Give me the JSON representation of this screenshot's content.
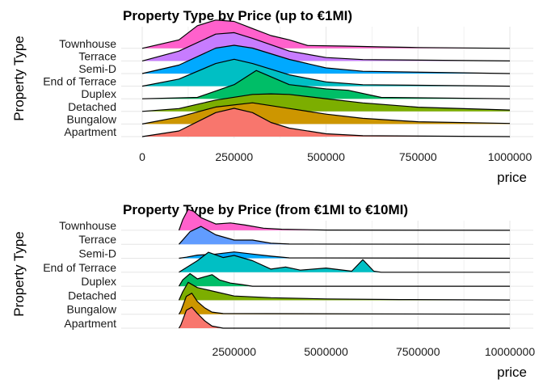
{
  "chart_data": [
    {
      "type": "area",
      "subtype": "ridgeline-density",
      "title": "Property Type by Price (up to €1MI)",
      "xlabel": "price",
      "ylabel": "Property Type",
      "xlim": [
        0,
        1000000
      ],
      "xticks": [
        0,
        250000,
        500000,
        750000,
        1000000
      ],
      "xtick_labels": [
        "0",
        "250000",
        "500000",
        "750000",
        "1000000"
      ],
      "grid": true,
      "legend": "none",
      "categories": [
        "Apartment",
        "Bungalow",
        "Detached",
        "Duplex",
        "End of Terrace",
        "Semi-D",
        "Terrace",
        "Townhouse"
      ],
      "series": [
        {
          "name": "Apartment",
          "color": "#F8766D",
          "x": [
            0,
            100000,
            200000,
            250000,
            300000,
            350000,
            400000,
            500000,
            600000,
            1000000
          ],
          "density": [
            0,
            0.2,
            0.85,
            1.0,
            0.85,
            0.5,
            0.3,
            0.1,
            0.03,
            0
          ]
        },
        {
          "name": "Bungalow",
          "color": "#CD9600",
          "x": [
            0,
            100000,
            200000,
            300000,
            400000,
            500000,
            600000,
            750000,
            1000000
          ],
          "density": [
            0,
            0.25,
            0.6,
            0.75,
            0.55,
            0.35,
            0.2,
            0.08,
            0.02
          ]
        },
        {
          "name": "Detached",
          "color": "#7CAE00",
          "x": [
            0,
            100000,
            200000,
            300000,
            350000,
            400000,
            500000,
            600000,
            750000,
            1000000
          ],
          "density": [
            0,
            0.1,
            0.4,
            0.6,
            0.62,
            0.6,
            0.45,
            0.3,
            0.15,
            0.05
          ]
        },
        {
          "name": "Duplex",
          "color": "#00BE67",
          "x": [
            0,
            150000,
            250000,
            310000,
            400000,
            500000,
            560000,
            650000,
            1000000
          ],
          "density": [
            0,
            0.05,
            0.5,
            1.0,
            0.5,
            0.35,
            0.3,
            0.05,
            0
          ]
        },
        {
          "name": "End of Terrace",
          "color": "#00BFC4",
          "x": [
            0,
            100000,
            200000,
            250000,
            300000,
            400000,
            500000,
            600000,
            1000000
          ],
          "density": [
            0,
            0.25,
            0.8,
            0.95,
            0.8,
            0.4,
            0.15,
            0.05,
            0
          ]
        },
        {
          "name": "Semi-D",
          "color": "#00A9FF",
          "x": [
            0,
            100000,
            200000,
            250000,
            300000,
            400000,
            500000,
            600000,
            1000000
          ],
          "density": [
            0,
            0.3,
            0.9,
            1.0,
            0.9,
            0.5,
            0.2,
            0.08,
            0
          ]
        },
        {
          "name": "Terrace",
          "color": "#C77CFF",
          "x": [
            0,
            100000,
            200000,
            250000,
            300000,
            400000,
            500000,
            600000,
            1000000
          ],
          "density": [
            0,
            0.35,
            0.95,
            1.0,
            0.8,
            0.35,
            0.12,
            0.05,
            0
          ]
        },
        {
          "name": "Townhouse",
          "color": "#FF61CC",
          "x": [
            0,
            100000,
            150000,
            200000,
            250000,
            300000,
            350000,
            400000,
            450000,
            550000,
            650000,
            750000,
            1000000
          ],
          "density": [
            0,
            0.3,
            0.8,
            1.0,
            0.95,
            0.7,
            0.45,
            0.3,
            0.1,
            0.08,
            0.05,
            0.03,
            0
          ]
        }
      ]
    },
    {
      "type": "area",
      "subtype": "ridgeline-density",
      "title": "Property Type by Price (from €1MI to €10MI)",
      "xlabel": "price",
      "ylabel": "Property Type",
      "xlim": [
        0,
        10000000
      ],
      "xticks": [
        2500000,
        5000000,
        7500000,
        10000000
      ],
      "xtick_labels": [
        "2500000",
        "5000000",
        "7500000",
        "10000000"
      ],
      "grid": true,
      "legend": "none",
      "categories": [
        "Apartment",
        "Bungalow",
        "Detached",
        "Duplex",
        "End of Terrace",
        "Semi-D",
        "Terrace",
        "Townhouse"
      ],
      "series": [
        {
          "name": "Apartment",
          "color": "#F8766D",
          "x": [
            1000000,
            1050000,
            1200000,
            1350000,
            1500000,
            1700000,
            1900000,
            2200000,
            10000000
          ],
          "density": [
            0,
            0.15,
            0.85,
            1.0,
            0.7,
            0.35,
            0.1,
            0,
            0
          ]
        },
        {
          "name": "Bungalow",
          "color": "#CD9600",
          "x": [
            1000000,
            1050000,
            1200000,
            1350000,
            1500000,
            1700000,
            1900000,
            2200000,
            10000000
          ],
          "density": [
            0,
            0.15,
            0.85,
            1.0,
            0.6,
            0.3,
            0.1,
            0.03,
            0
          ]
        },
        {
          "name": "Detached",
          "color": "#7CAE00",
          "x": [
            1000000,
            1100000,
            1250000,
            1500000,
            2000000,
            2500000,
            3500000,
            5000000,
            7000000,
            10000000
          ],
          "density": [
            0,
            0.4,
            0.85,
            0.6,
            0.4,
            0.2,
            0.12,
            0.06,
            0.03,
            0.01
          ]
        },
        {
          "name": "Duplex",
          "color": "#00BE67",
          "x": [
            1000000,
            1100000,
            1300000,
            1500000,
            1900000,
            2100000,
            2400000,
            2700000,
            3000000,
            10000000
          ],
          "density": [
            0,
            0.3,
            0.6,
            0.35,
            0.55,
            0.3,
            0.15,
            0.08,
            0,
            0
          ]
        },
        {
          "name": "End of Terrace",
          "color": "#00BFC4",
          "x": [
            1000000,
            1500000,
            1800000,
            2200000,
            2500000,
            3000000,
            3500000,
            3900000,
            4300000,
            5000000,
            5700000,
            6000000,
            6300000,
            6500000,
            10000000
          ],
          "density": [
            0,
            0.55,
            0.95,
            0.7,
            0.8,
            0.55,
            0.15,
            0.25,
            0.1,
            0.2,
            0.05,
            0.6,
            0.05,
            0,
            0
          ]
        },
        {
          "name": "Semi-D",
          "color": "#00A9FF",
          "x": [
            1000000,
            1200000,
            1500000,
            2000000,
            2500000,
            3000000,
            3500000,
            4000000,
            10000000
          ],
          "density": [
            0,
            0.05,
            0.15,
            0.2,
            0.3,
            0.2,
            0.1,
            0.02,
            0
          ]
        },
        {
          "name": "Terrace",
          "color": "#619CFF",
          "x": [
            1000000,
            1300000,
            1600000,
            2000000,
            2500000,
            3000000,
            3500000,
            4000000,
            10000000
          ],
          "density": [
            0,
            0.6,
            0.85,
            0.45,
            0.2,
            0.2,
            0.05,
            0.01,
            0
          ]
        },
        {
          "name": "Townhouse",
          "color": "#FF61CC",
          "x": [
            1000000,
            1100000,
            1250000,
            1400000,
            1600000,
            2000000,
            2400000,
            2800000,
            3300000,
            3800000,
            5000000,
            10000000
          ],
          "density": [
            0,
            0.5,
            1.0,
            0.9,
            0.6,
            0.3,
            0.35,
            0.25,
            0.1,
            0.05,
            0.01,
            0
          ]
        }
      ]
    }
  ]
}
